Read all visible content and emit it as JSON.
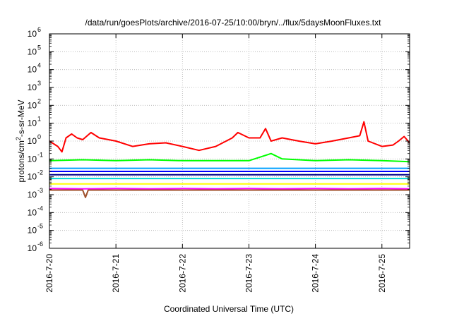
{
  "chart_data": {
    "type": "line",
    "title": "/data/run/goesPlots/archive/2016-07-25/10:00/bryn/../flux/5daysMoonFluxes.txt",
    "xlabel": "Coordinated Universal Time (UTC)",
    "ylabel": "protons/cm²-s-sr-MeV",
    "y_scale": "log",
    "ylim": [
      1e-06,
      1000000.0
    ],
    "y_ticks": [
      {
        "value": -6,
        "base": "10",
        "exp": "-6"
      },
      {
        "value": -5,
        "base": "10",
        "exp": "-5"
      },
      {
        "value": -4,
        "base": "10",
        "exp": "-4"
      },
      {
        "value": -3,
        "base": "10",
        "exp": "-3"
      },
      {
        "value": -2,
        "base": "10",
        "exp": "-2"
      },
      {
        "value": -1,
        "base": "10",
        "exp": "-1"
      },
      {
        "value": 0,
        "base": "10",
        "exp": "0"
      },
      {
        "value": 1,
        "base": "10",
        "exp": "1"
      },
      {
        "value": 2,
        "base": "10",
        "exp": "2"
      },
      {
        "value": 3,
        "base": "10",
        "exp": "3"
      },
      {
        "value": 4,
        "base": "10",
        "exp": "4"
      },
      {
        "value": 5,
        "base": "10",
        "exp": "5"
      },
      {
        "value": 6,
        "base": "10",
        "exp": "6"
      }
    ],
    "xlim": [
      "2016-07-20",
      "2016-07-25 10:00"
    ],
    "x_ticks": [
      "2016-7-20",
      "2016-7-21",
      "2016-7-22",
      "2016-7-23",
      "2016-7-24",
      "2016-7-25"
    ],
    "grid": true,
    "series": [
      {
        "color": "#ff0000",
        "x": [
          "2016-07-20 00:00",
          "2016-07-20 03:00",
          "2016-07-20 04:30",
          "2016-07-20 06:00",
          "2016-07-20 08:00",
          "2016-07-20 10:00",
          "2016-07-20 12:00",
          "2016-07-20 15:00",
          "2016-07-20 18:00",
          "2016-07-21 00:00",
          "2016-07-21 06:00",
          "2016-07-21 12:00",
          "2016-07-21 18:00",
          "2016-07-22 00:00",
          "2016-07-22 06:00",
          "2016-07-22 12:00",
          "2016-07-22 18:00",
          "2016-07-22 20:00",
          "2016-07-23 00:00",
          "2016-07-23 04:00",
          "2016-07-23 06:00",
          "2016-07-23 08:00",
          "2016-07-23 12:00",
          "2016-07-23 18:00",
          "2016-07-24 00:00",
          "2016-07-24 06:00",
          "2016-07-24 12:00",
          "2016-07-24 16:00",
          "2016-07-24 17:30",
          "2016-07-24 19:00",
          "2016-07-25 00:00",
          "2016-07-25 04:00",
          "2016-07-25 06:00",
          "2016-07-25 08:00",
          "2016-07-25 10:00"
        ],
        "y": [
          1.0,
          0.5,
          0.25,
          1.5,
          2.5,
          1.5,
          1.2,
          3.0,
          1.5,
          1.0,
          0.5,
          0.7,
          0.8,
          0.5,
          0.3,
          0.5,
          1.5,
          3.0,
          1.5,
          1.5,
          5.0,
          1.0,
          1.5,
          1.0,
          0.7,
          1.0,
          1.5,
          2.0,
          12.0,
          1.0,
          0.5,
          0.6,
          1.0,
          1.8,
          0.8
        ]
      },
      {
        "color": "#00ff00",
        "x": [
          "2016-07-20 00:00",
          "2016-07-20 12:00",
          "2016-07-21 00:00",
          "2016-07-21 12:00",
          "2016-07-22 00:00",
          "2016-07-22 12:00",
          "2016-07-23 00:00",
          "2016-07-23 08:00",
          "2016-07-23 12:00",
          "2016-07-24 00:00",
          "2016-07-24 12:00",
          "2016-07-25 00:00",
          "2016-07-25 10:00"
        ],
        "y": [
          0.08,
          0.09,
          0.08,
          0.09,
          0.08,
          0.08,
          0.08,
          0.2,
          0.1,
          0.08,
          0.09,
          0.08,
          0.07
        ]
      },
      {
        "color": "#00a0ff",
        "x": [
          "2016-07-20 00:00",
          "2016-07-20 12:00",
          "2016-07-21 00:00",
          "2016-07-21 12:00",
          "2016-07-22 00:00",
          "2016-07-22 12:00",
          "2016-07-23 00:00",
          "2016-07-23 12:00",
          "2016-07-24 00:00",
          "2016-07-24 12:00",
          "2016-07-25 00:00",
          "2016-07-25 10:00"
        ],
        "y": [
          0.03,
          0.03,
          0.03,
          0.03,
          0.03,
          0.03,
          0.03,
          0.03,
          0.03,
          0.03,
          0.03,
          0.03
        ]
      },
      {
        "color": "#0000ff",
        "x": [
          "2016-07-20 00:00",
          "2016-07-20 12:00",
          "2016-07-21 00:00",
          "2016-07-21 12:00",
          "2016-07-22 00:00",
          "2016-07-22 12:00",
          "2016-07-23 00:00",
          "2016-07-23 12:00",
          "2016-07-24 00:00",
          "2016-07-24 12:00",
          "2016-07-25 00:00",
          "2016-07-25 10:00"
        ],
        "y": [
          0.02,
          0.02,
          0.02,
          0.02,
          0.02,
          0.02,
          0.02,
          0.02,
          0.02,
          0.02,
          0.02,
          0.02
        ]
      },
      {
        "color": "#00d8d8",
        "x": [
          "2016-07-20 00:00",
          "2016-07-20 12:00",
          "2016-07-21 00:00",
          "2016-07-21 12:00",
          "2016-07-22 00:00",
          "2016-07-22 12:00",
          "2016-07-23 00:00",
          "2016-07-23 12:00",
          "2016-07-24 00:00",
          "2016-07-24 12:00",
          "2016-07-25 00:00",
          "2016-07-25 10:00"
        ],
        "y": [
          0.008,
          0.008,
          0.008,
          0.008,
          0.008,
          0.008,
          0.008,
          0.008,
          0.008,
          0.008,
          0.008,
          0.008
        ]
      },
      {
        "color": "#00008b",
        "x": [
          "2016-07-20 00:00",
          "2016-07-20 12:00",
          "2016-07-21 00:00",
          "2016-07-21 12:00",
          "2016-07-22 00:00",
          "2016-07-22 12:00",
          "2016-07-23 00:00",
          "2016-07-23 12:00",
          "2016-07-24 00:00",
          "2016-07-24 12:00",
          "2016-07-25 00:00",
          "2016-07-25 10:00"
        ],
        "y": [
          0.013,
          0.013,
          0.013,
          0.013,
          0.013,
          0.013,
          0.013,
          0.013,
          0.013,
          0.013,
          0.013,
          0.013
        ]
      },
      {
        "color": "#ffff00",
        "x": [
          "2016-07-20 00:00",
          "2016-07-20 12:00",
          "2016-07-21 00:00",
          "2016-07-21 12:00",
          "2016-07-22 00:00",
          "2016-07-22 12:00",
          "2016-07-23 00:00",
          "2016-07-23 12:00",
          "2016-07-24 00:00",
          "2016-07-24 12:00",
          "2016-07-25 00:00",
          "2016-07-25 10:00"
        ],
        "y": [
          0.004,
          0.004,
          0.004,
          0.004,
          0.004,
          0.004,
          0.004,
          0.004,
          0.004,
          0.004,
          0.004,
          0.004
        ]
      },
      {
        "color": "#ff00ff",
        "x": [
          "2016-07-20 00:00",
          "2016-07-20 12:00",
          "2016-07-21 00:00",
          "2016-07-21 12:00",
          "2016-07-22 00:00",
          "2016-07-22 12:00",
          "2016-07-23 00:00",
          "2016-07-23 12:00",
          "2016-07-24 00:00",
          "2016-07-24 12:00",
          "2016-07-25 00:00",
          "2016-07-25 10:00"
        ],
        "y": [
          0.0022,
          0.0021,
          0.0022,
          0.0021,
          0.0022,
          0.0021,
          0.0022,
          0.0021,
          0.0022,
          0.0021,
          0.0022,
          0.0021
        ]
      },
      {
        "color": "#a0522d",
        "x": [
          "2016-07-20 00:00",
          "2016-07-20 12:00",
          "2016-07-20 13:00",
          "2016-07-20 14:00",
          "2016-07-21 00:00",
          "2016-07-21 12:00",
          "2016-07-22 00:00",
          "2016-07-22 12:00",
          "2016-07-23 00:00",
          "2016-07-23 12:00",
          "2016-07-24 00:00",
          "2016-07-24 12:00",
          "2016-07-25 00:00",
          "2016-07-25 10:00"
        ],
        "y": [
          0.0018,
          0.0018,
          0.0007,
          0.0018,
          0.0018,
          0.0018,
          0.0018,
          0.0018,
          0.0018,
          0.0018,
          0.0018,
          0.0018,
          0.0018,
          0.0018
        ]
      }
    ]
  }
}
